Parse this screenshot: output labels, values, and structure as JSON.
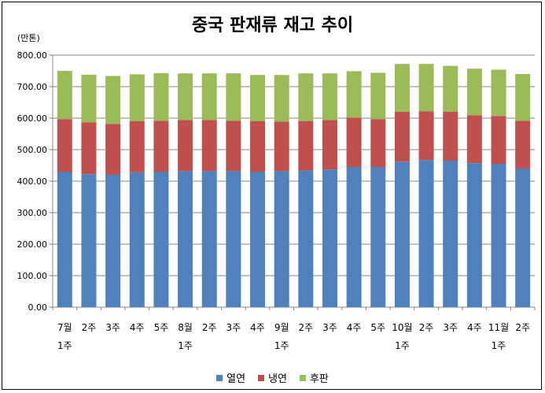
{
  "chart_data": {
    "type": "bar",
    "stacked": true,
    "title": "중국 판재류 재고 추이",
    "unit_label": "(만톤)",
    "ylim": [
      0,
      800
    ],
    "y_ticks": [
      "0.00",
      "100.00",
      "200.00",
      "300.00",
      "400.00",
      "500.00",
      "600.00",
      "700.00",
      "800.00"
    ],
    "categories": [
      [
        "7월",
        "1주"
      ],
      [
        "2주"
      ],
      [
        "3주"
      ],
      [
        "4주"
      ],
      [
        "5주"
      ],
      [
        "8월",
        "1주"
      ],
      [
        "2주"
      ],
      [
        "3주"
      ],
      [
        "4주"
      ],
      [
        "9월",
        "1주"
      ],
      [
        "2주"
      ],
      [
        "3주"
      ],
      [
        "4주"
      ],
      [
        "5주"
      ],
      [
        "10월",
        "1주"
      ],
      [
        "2주"
      ],
      [
        "3주"
      ],
      [
        "4주"
      ],
      [
        "11월",
        "1주"
      ],
      [
        "2주"
      ]
    ],
    "series": [
      {
        "name": "열연",
        "color": "#4f81bd",
        "values": [
          430,
          422,
          420,
          428,
          430,
          432,
          432,
          432,
          430,
          432,
          434,
          437,
          445,
          445,
          462,
          467,
          465,
          457,
          455,
          440
        ]
      },
      {
        "name": "냉연",
        "color": "#c0504d",
        "values": [
          167,
          165,
          162,
          162,
          162,
          162,
          162,
          160,
          160,
          157,
          157,
          157,
          157,
          152,
          158,
          155,
          155,
          152,
          152,
          152
        ]
      },
      {
        "name": "후판",
        "color": "#9bbb59",
        "values": [
          153,
          151,
          152,
          149,
          151,
          148,
          148,
          150,
          147,
          148,
          151,
          148,
          147,
          147,
          152,
          150,
          146,
          148,
          147,
          148
        ]
      }
    ],
    "grid": true,
    "legend_position": "bottom"
  }
}
